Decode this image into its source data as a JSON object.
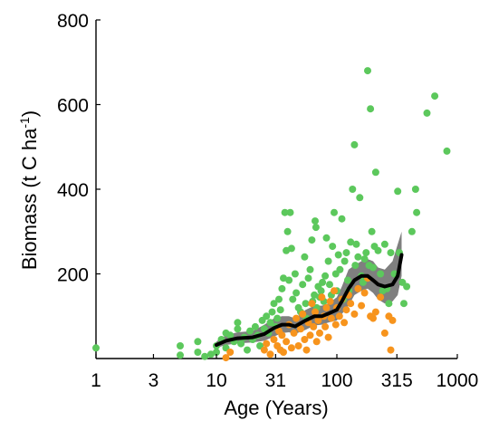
{
  "chart_data": {
    "type": "scatter",
    "title": "",
    "xlabel": "Age (Years)",
    "ylabel_main": "Biomass (t C ha",
    "ylabel_sup": "-1",
    "ylabel_close": ")",
    "xscale": "log",
    "xlim": [
      1,
      1000
    ],
    "ylim": [
      0,
      800
    ],
    "x_ticks": [
      {
        "value": 1,
        "label": "1"
      },
      {
        "value": 3,
        "label": "3"
      },
      {
        "value": 10,
        "label": "10"
      },
      {
        "value": 31,
        "label": "31"
      },
      {
        "value": 100,
        "label": "100"
      },
      {
        "value": 315,
        "label": "315"
      },
      {
        "value": 1000,
        "label": "1000"
      }
    ],
    "y_ticks": [
      {
        "value": 200,
        "label": "200"
      },
      {
        "value": 400,
        "label": "400"
      },
      {
        "value": 600,
        "label": "600"
      },
      {
        "value": 800,
        "label": "800"
      }
    ],
    "grid": false,
    "legend": "none",
    "colors": {
      "green": "#5cc85c",
      "orange": "#f7941d",
      "band": "#7f7f7f",
      "line": "#000000"
    },
    "series": [
      {
        "color": "green",
        "points": [
          [
            1,
            25
          ],
          [
            5,
            30
          ],
          [
            5,
            8
          ],
          [
            7,
            15
          ],
          [
            7,
            40
          ],
          [
            8,
            5
          ],
          [
            9,
            10
          ],
          [
            10,
            15
          ],
          [
            10,
            30
          ],
          [
            11,
            45
          ],
          [
            12,
            60
          ],
          [
            12,
            25
          ],
          [
            13,
            55
          ],
          [
            14,
            40
          ],
          [
            15,
            85
          ],
          [
            15,
            70
          ],
          [
            16,
            35
          ],
          [
            17,
            50
          ],
          [
            18,
            20
          ],
          [
            19,
            65
          ],
          [
            20,
            45
          ],
          [
            21,
            75
          ],
          [
            22,
            55
          ],
          [
            23,
            30
          ],
          [
            24,
            90
          ],
          [
            25,
            70
          ],
          [
            26,
            100
          ],
          [
            27,
            60
          ],
          [
            28,
            85
          ],
          [
            29,
            110
          ],
          [
            30,
            130
          ],
          [
            31,
            75
          ],
          [
            32,
            95
          ],
          [
            33,
            140
          ],
          [
            34,
            115
          ],
          [
            35,
            165
          ],
          [
            36,
            190
          ],
          [
            37,
            345
          ],
          [
            38,
            255
          ],
          [
            39,
            300
          ],
          [
            40,
            185
          ],
          [
            41,
            345
          ],
          [
            42,
            260
          ],
          [
            43,
            140
          ],
          [
            45,
            200
          ],
          [
            46,
            155
          ],
          [
            48,
            120
          ],
          [
            50,
            110
          ],
          [
            52,
            175
          ],
          [
            54,
            240
          ],
          [
            55,
            130
          ],
          [
            56,
            95
          ],
          [
            58,
            190
          ],
          [
            60,
            210
          ],
          [
            62,
            280
          ],
          [
            63,
            135
          ],
          [
            65,
            150
          ],
          [
            66,
            325
          ],
          [
            67,
            310
          ],
          [
            68,
            120
          ],
          [
            70,
            170
          ],
          [
            72,
            145
          ],
          [
            74,
            160
          ],
          [
            76,
            180
          ],
          [
            78,
            135
          ],
          [
            80,
            195
          ],
          [
            82,
            285
          ],
          [
            85,
            230
          ],
          [
            87,
            175
          ],
          [
            90,
            150
          ],
          [
            92,
            265
          ],
          [
            95,
            345
          ],
          [
            98,
            200
          ],
          [
            100,
            160
          ],
          [
            103,
            245
          ],
          [
            106,
            210
          ],
          [
            110,
            330
          ],
          [
            113,
            140
          ],
          [
            116,
            230
          ],
          [
            120,
            250
          ],
          [
            123,
            185
          ],
          [
            126,
            160
          ],
          [
            130,
            275
          ],
          [
            135,
            400
          ],
          [
            140,
            505
          ],
          [
            142,
            220
          ],
          [
            145,
            270
          ],
          [
            150,
            240
          ],
          [
            155,
            380
          ],
          [
            160,
            195
          ],
          [
            165,
            180
          ],
          [
            170,
            235
          ],
          [
            175,
            250
          ],
          [
            180,
            680
          ],
          [
            185,
            220
          ],
          [
            190,
            590
          ],
          [
            195,
            300
          ],
          [
            200,
            215
          ],
          [
            205,
            265
          ],
          [
            210,
            440
          ],
          [
            220,
            255
          ],
          [
            230,
            200
          ],
          [
            240,
            160
          ],
          [
            250,
            270
          ],
          [
            260,
            165
          ],
          [
            270,
            130
          ],
          [
            280,
            250
          ],
          [
            300,
            200
          ],
          [
            320,
            395
          ],
          [
            330,
            250
          ],
          [
            350,
            180
          ],
          [
            360,
            130
          ],
          [
            380,
            170
          ],
          [
            420,
            300
          ],
          [
            450,
            400
          ],
          [
            460,
            345
          ],
          [
            560,
            580
          ],
          [
            650,
            620
          ],
          [
            820,
            490
          ]
        ]
      },
      {
        "color": "orange",
        "points": [
          [
            12,
            2
          ],
          [
            13,
            15
          ],
          [
            25,
            20
          ],
          [
            26,
            35
          ],
          [
            28,
            10
          ],
          [
            30,
            45
          ],
          [
            32,
            30
          ],
          [
            33,
            65
          ],
          [
            34,
            20
          ],
          [
            35,
            55
          ],
          [
            36,
            15
          ],
          [
            38,
            40
          ],
          [
            40,
            80
          ],
          [
            42,
            25
          ],
          [
            44,
            60
          ],
          [
            46,
            95
          ],
          [
            48,
            30
          ],
          [
            50,
            70
          ],
          [
            52,
            105
          ],
          [
            54,
            45
          ],
          [
            56,
            20
          ],
          [
            58,
            85
          ],
          [
            60,
            55
          ],
          [
            62,
            130
          ],
          [
            64,
            75
          ],
          [
            66,
            110
          ],
          [
            68,
            40
          ],
          [
            70,
            90
          ],
          [
            72,
            60
          ],
          [
            75,
            145
          ],
          [
            78,
            100
          ],
          [
            80,
            75
          ],
          [
            82,
            120
          ],
          [
            85,
            50
          ],
          [
            88,
            135
          ],
          [
            90,
            95
          ],
          [
            95,
            160
          ],
          [
            98,
            80
          ],
          [
            100,
            120
          ],
          [
            105,
            100
          ],
          [
            110,
            140
          ],
          [
            115,
            85
          ],
          [
            120,
            115
          ],
          [
            125,
            150
          ],
          [
            130,
            130
          ],
          [
            140,
            105
          ],
          [
            150,
            165
          ],
          [
            160,
            125
          ],
          [
            170,
            155
          ],
          [
            180,
            190
          ],
          [
            190,
            100
          ],
          [
            200,
            95
          ],
          [
            210,
            110
          ],
          [
            230,
            145
          ],
          [
            250,
            60
          ],
          [
            270,
            100
          ],
          [
            280,
            20
          ],
          [
            290,
            90
          ]
        ]
      }
    ],
    "trend": [
      [
        10,
        32
      ],
      [
        12,
        42
      ],
      [
        15,
        48
      ],
      [
        20,
        50
      ],
      [
        25,
        58
      ],
      [
        30,
        72
      ],
      [
        35,
        80
      ],
      [
        40,
        80
      ],
      [
        45,
        76
      ],
      [
        55,
        90
      ],
      [
        65,
        100
      ],
      [
        75,
        100
      ],
      [
        85,
        106
      ],
      [
        100,
        115
      ],
      [
        110,
        135
      ],
      [
        125,
        165
      ],
      [
        140,
        185
      ],
      [
        160,
        195
      ],
      [
        180,
        195
      ],
      [
        200,
        185
      ],
      [
        220,
        175
      ],
      [
        250,
        170
      ],
      [
        290,
        175
      ],
      [
        320,
        195
      ],
      [
        345,
        245
      ]
    ],
    "band_upper": [
      [
        10,
        40
      ],
      [
        12,
        55
      ],
      [
        15,
        62
      ],
      [
        20,
        65
      ],
      [
        25,
        80
      ],
      [
        30,
        95
      ],
      [
        35,
        100
      ],
      [
        40,
        100
      ],
      [
        45,
        95
      ],
      [
        55,
        115
      ],
      [
        65,
        125
      ],
      [
        75,
        125
      ],
      [
        85,
        130
      ],
      [
        100,
        145
      ],
      [
        110,
        170
      ],
      [
        125,
        210
      ],
      [
        140,
        220
      ],
      [
        160,
        230
      ],
      [
        180,
        235
      ],
      [
        200,
        230
      ],
      [
        220,
        215
      ],
      [
        250,
        210
      ],
      [
        290,
        230
      ],
      [
        320,
        270
      ],
      [
        345,
        300
      ]
    ],
    "band_lower": [
      [
        10,
        25
      ],
      [
        12,
        32
      ],
      [
        15,
        36
      ],
      [
        20,
        38
      ],
      [
        25,
        42
      ],
      [
        30,
        52
      ],
      [
        35,
        60
      ],
      [
        40,
        62
      ],
      [
        45,
        58
      ],
      [
        55,
        68
      ],
      [
        65,
        78
      ],
      [
        75,
        80
      ],
      [
        85,
        85
      ],
      [
        100,
        90
      ],
      [
        110,
        105
      ],
      [
        125,
        125
      ],
      [
        140,
        150
      ],
      [
        160,
        160
      ],
      [
        180,
        165
      ],
      [
        200,
        155
      ],
      [
        220,
        140
      ],
      [
        250,
        130
      ],
      [
        290,
        135
      ],
      [
        320,
        150
      ],
      [
        345,
        195
      ]
    ]
  }
}
